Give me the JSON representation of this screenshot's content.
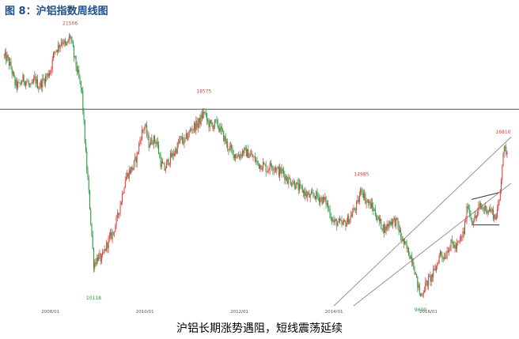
{
  "figure": {
    "title": "图 8：沪铝指数周线图",
    "caption": "沪铝长期涨势遇阻，短线震荡延续"
  },
  "colors": {
    "up": "#e03a3a",
    "down": "#1f9a3a",
    "title": "#1f4e8c",
    "support_line": "#555555",
    "trend_line": "#888888",
    "annotation_high": "#e03a3a",
    "annotation_low": "#1f9a3a",
    "axis_text": "#555555"
  },
  "chart_data": {
    "type": "candlestick",
    "title": "",
    "xlabel": "",
    "ylabel": "",
    "x_tick_labels": [
      "2008/01",
      "2010/01",
      "2012/01",
      "2014/01",
      "2016/01"
    ],
    "ylim": [
      9500,
      21700
    ],
    "annotations": [
      {
        "label": "21506",
        "date": "2008-06",
        "value": 21506,
        "kind": "high"
      },
      {
        "label": "10118",
        "date": "2008-12",
        "value": 10118,
        "kind": "low"
      },
      {
        "label": "18575",
        "date": "2011-04",
        "value": 18575,
        "kind": "high"
      },
      {
        "label": "14985",
        "date": "2014-08",
        "value": 14985,
        "kind": "high"
      },
      {
        "label": "9600",
        "date": "2015-11",
        "value": 9600,
        "kind": "low"
      },
      {
        "label": "16810",
        "date": "2017-08",
        "value": 16810,
        "kind": "high"
      }
    ],
    "reference_lines": [
      {
        "kind": "horizontal",
        "value": 18000
      },
      {
        "kind": "segment",
        "from": {
          "date": "2016-12",
          "value": 14100
        },
        "to": {
          "date": "2017-07",
          "value": 14400
        }
      },
      {
        "kind": "segment",
        "from": {
          "date": "2016-12",
          "value": 13000
        },
        "to": {
          "date": "2017-07",
          "value": 13000
        }
      }
    ],
    "channel": {
      "lower": {
        "from": {
          "date": "2014-06",
          "value": 9500
        },
        "to": {
          "date": "2017-10",
          "value": 14800
        }
      },
      "upper": {
        "from": {
          "date": "2014-01",
          "value": 9500
        },
        "to": {
          "date": "2017-10",
          "value": 16800
        }
      }
    },
    "close_path": [
      [
        "2007-01",
        20300
      ],
      [
        "2007-02",
        20200
      ],
      [
        "2007-03",
        19800
      ],
      [
        "2007-04",
        19100
      ],
      [
        "2007-05",
        19000
      ],
      [
        "2007-06",
        19300
      ],
      [
        "2007-07",
        19200
      ],
      [
        "2007-08",
        18900
      ],
      [
        "2007-09",
        19300
      ],
      [
        "2007-10",
        19000
      ],
      [
        "2007-11",
        19200
      ],
      [
        "2007-12",
        19400
      ],
      [
        "2008-01",
        19700
      ],
      [
        "2008-02",
        20500
      ],
      [
        "2008-03",
        20700
      ],
      [
        "2008-04",
        21000
      ],
      [
        "2008-05",
        20700
      ],
      [
        "2008-06",
        21200
      ],
      [
        "2008-07",
        20300
      ],
      [
        "2008-08",
        19500
      ],
      [
        "2008-09",
        18700
      ],
      [
        "2008-10",
        16000
      ],
      [
        "2008-11",
        13800
      ],
      [
        "2008-12",
        11300
      ],
      [
        "2009-01",
        11600
      ],
      [
        "2009-02",
        11500
      ],
      [
        "2009-03",
        12000
      ],
      [
        "2009-04",
        12400
      ],
      [
        "2009-05",
        12700
      ],
      [
        "2009-06",
        13300
      ],
      [
        "2009-07",
        14100
      ],
      [
        "2009-08",
        15000
      ],
      [
        "2009-09",
        15300
      ],
      [
        "2009-10",
        15500
      ],
      [
        "2009-11",
        16000
      ],
      [
        "2009-12",
        16900
      ],
      [
        "2010-01",
        17300
      ],
      [
        "2010-02",
        16500
      ],
      [
        "2010-03",
        16700
      ],
      [
        "2010-04",
        16600
      ],
      [
        "2010-05",
        15700
      ],
      [
        "2010-06",
        15400
      ],
      [
        "2010-07",
        15800
      ],
      [
        "2010-08",
        16000
      ],
      [
        "2010-09",
        16300
      ],
      [
        "2010-10",
        16700
      ],
      [
        "2010-11",
        16600
      ],
      [
        "2010-12",
        16900
      ],
      [
        "2011-01",
        17200
      ],
      [
        "2011-02",
        17300
      ],
      [
        "2011-03",
        17500
      ],
      [
        "2011-04",
        17900
      ],
      [
        "2011-05",
        17400
      ],
      [
        "2011-06",
        17300
      ],
      [
        "2011-07",
        17400
      ],
      [
        "2011-08",
        17200
      ],
      [
        "2011-09",
        16800
      ],
      [
        "2011-10",
        16400
      ],
      [
        "2011-11",
        16200
      ],
      [
        "2011-12",
        16000
      ],
      [
        "2012-01",
        16000
      ],
      [
        "2012-02",
        16200
      ],
      [
        "2012-03",
        16100
      ],
      [
        "2012-04",
        16000
      ],
      [
        "2012-05",
        15800
      ],
      [
        "2012-06",
        15600
      ],
      [
        "2012-07",
        15600
      ],
      [
        "2012-08",
        15400
      ],
      [
        "2012-09",
        15600
      ],
      [
        "2012-10",
        15500
      ],
      [
        "2012-11",
        15300
      ],
      [
        "2012-12",
        15300
      ],
      [
        "2013-01",
        15000
      ],
      [
        "2013-02",
        14900
      ],
      [
        "2013-03",
        14800
      ],
      [
        "2013-04",
        14600
      ],
      [
        "2013-05",
        14500
      ],
      [
        "2013-06",
        14300
      ],
      [
        "2013-07",
        14200
      ],
      [
        "2013-08",
        14300
      ],
      [
        "2013-09",
        14200
      ],
      [
        "2013-10",
        14100
      ],
      [
        "2013-11",
        14000
      ],
      [
        "2013-12",
        13500
      ],
      [
        "2014-01",
        13100
      ],
      [
        "2014-02",
        13100
      ],
      [
        "2014-03",
        13000
      ],
      [
        "2014-04",
        13100
      ],
      [
        "2014-05",
        13300
      ],
      [
        "2014-06",
        13600
      ],
      [
        "2014-07",
        13900
      ],
      [
        "2014-08",
        14600
      ],
      [
        "2014-09",
        14100
      ],
      [
        "2014-10",
        13900
      ],
      [
        "2014-11",
        13700
      ],
      [
        "2014-12",
        13300
      ],
      [
        "2015-01",
        13000
      ],
      [
        "2015-02",
        12800
      ],
      [
        "2015-03",
        13100
      ],
      [
        "2015-04",
        13200
      ],
      [
        "2015-05",
        13100
      ],
      [
        "2015-06",
        12500
      ],
      [
        "2015-07",
        12100
      ],
      [
        "2015-08",
        11800
      ],
      [
        "2015-09",
        11500
      ],
      [
        "2015-10",
        10600
      ],
      [
        "2015-11",
        9900
      ],
      [
        "2015-12",
        10300
      ],
      [
        "2016-01",
        10600
      ],
      [
        "2016-02",
        10800
      ],
      [
        "2016-03",
        11200
      ],
      [
        "2016-04",
        11800
      ],
      [
        "2016-05",
        11600
      ],
      [
        "2016-06",
        12000
      ],
      [
        "2016-07",
        12200
      ],
      [
        "2016-08",
        12000
      ],
      [
        "2016-09",
        12300
      ],
      [
        "2016-10",
        12700
      ],
      [
        "2016-11",
        13900
      ],
      [
        "2016-12",
        13200
      ],
      [
        "2017-01",
        13300
      ],
      [
        "2017-02",
        13800
      ],
      [
        "2017-03",
        13700
      ],
      [
        "2017-04",
        13700
      ],
      [
        "2017-05",
        13600
      ],
      [
        "2017-06",
        13300
      ],
      [
        "2017-07",
        14000
      ],
      [
        "2017-08",
        16200
      ],
      [
        "2017-09",
        16200
      ]
    ]
  }
}
